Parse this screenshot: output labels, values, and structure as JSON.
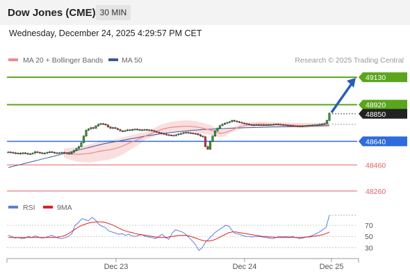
{
  "header": {
    "title": "Dow Jones (CME)",
    "timeframe": "30 MIN"
  },
  "datetime": "Wednesday, December 24, 2025 4:29:57 PM CET",
  "legend": {
    "ma20": "MA 20 + Bollinger Bands",
    "ma50": "MA 50",
    "copyright": "Research © 2025 Trading Central"
  },
  "rsi_legend": {
    "rsi": "RSI",
    "ma9": "9MA"
  },
  "colors": {
    "resistance": "#5aa51c",
    "support": "#2e6bdc",
    "target": "#e26060",
    "current": "#222222",
    "arrow": "#2a5fb0",
    "ma20": "#f08888",
    "ma50": "#3a5a98",
    "rsi": "#5b7fd6",
    "rsi_ma": "#e02020",
    "bull": "#2f9e2f",
    "bear": "#c43a3a"
  },
  "chart_data": {
    "type": "candlestick",
    "instrument": "Dow Jones (CME)",
    "timeframe": "30 MIN",
    "price_axis": {
      "ylim": [
        48180,
        49210
      ]
    },
    "x_tick_labels": [
      "Dec 23",
      "Dec 24",
      "Dec 25"
    ],
    "levels": [
      {
        "value": 49130,
        "label": "49130",
        "kind": "resistance"
      },
      {
        "value": 48920,
        "label": "48920",
        "kind": "resistance"
      },
      {
        "value": 48850,
        "label": "48850",
        "kind": "last"
      },
      {
        "value": 48640,
        "label": "48640",
        "kind": "support"
      },
      {
        "value": 48460,
        "label": "48460",
        "kind": "target"
      },
      {
        "value": 48260,
        "label": "48260",
        "kind": "target"
      }
    ],
    "closes": [
      48558,
      48556,
      48552,
      48548,
      48550,
      48545,
      48552,
      48548,
      48542,
      48545,
      48550,
      48560,
      48556,
      48552,
      48548,
      48550,
      48556,
      48560,
      48556,
      48552,
      48550,
      48552,
      48556,
      48552,
      48548,
      48544,
      48556,
      48570,
      48585,
      48600,
      48630,
      48680,
      48725,
      48735,
      48745,
      48740,
      48758,
      48770,
      48775,
      48772,
      48765,
      48750,
      48740,
      48745,
      48738,
      48730,
      48720,
      48718,
      48722,
      48728,
      48725,
      48730,
      48733,
      48730,
      48726,
      48728,
      48730,
      48728,
      48726,
      48722,
      48715,
      48710,
      48705,
      48700,
      48695,
      48690,
      48688,
      48686,
      48684,
      48690,
      48696,
      48700,
      48706,
      48708,
      48705,
      48703,
      48700,
      48698,
      48690,
      48680,
      48675,
      48600,
      48580,
      48640,
      48680,
      48720,
      48740,
      48760,
      48770,
      48778,
      48784,
      48790,
      48800,
      48795,
      48790,
      48785,
      48780,
      48776,
      48772,
      48768,
      48765,
      48765,
      48766,
      48765,
      48764,
      48766,
      48765,
      48766,
      48768,
      48770,
      48772,
      48770,
      48768,
      48766,
      48764,
      48762,
      48760,
      48758,
      48757,
      48756,
      48755,
      48757,
      48758,
      48760,
      48762,
      48764,
      48765,
      48766,
      48770,
      48772,
      48776,
      48800,
      48855
    ],
    "ma20_values": [
      48550,
      48548,
      48545,
      48543,
      48540,
      48541,
      48543,
      48545,
      48547,
      48550,
      48555,
      48560,
      48565,
      48568,
      48572,
      48575,
      48580,
      48585,
      48592,
      48600,
      48610,
      48620,
      48630,
      48640,
      48650,
      48660,
      48670,
      48680,
      48690,
      48700,
      48710,
      48720,
      48728,
      48735,
      48740,
      48745,
      48748,
      48750,
      48752,
      48754,
      48755,
      48755,
      48754,
      48752,
      48750,
      48745,
      48740,
      48735,
      48730,
      48722,
      48715,
      48708,
      48700,
      48705,
      48712,
      48720,
      48730,
      48740,
      48748,
      48755,
      48760,
      48765,
      48768,
      48770,
      48772,
      48772,
      48772,
      48771,
      48770,
      48768,
      48767,
      48766,
      48766,
      48765,
      48765,
      48764,
      48764,
      48763,
      48763,
      48762,
      48762,
      48762,
      48763,
      48763,
      48764,
      48764,
      48765,
      48767,
      48770
    ],
    "ma50_values": [
      48440,
      48450,
      48460,
      48470,
      48480,
      48490,
      48500,
      48510,
      48520,
      48530,
      48540,
      48550,
      48560,
      48570,
      48580,
      48590,
      48600,
      48610,
      48620,
      48628,
      48635,
      48642,
      48650,
      48658,
      48665,
      48672,
      48680,
      48686,
      48692,
      48698,
      48703,
      48708,
      48712,
      48716,
      48720,
      48724,
      48727,
      48730,
      48732,
      48734,
      48736,
      48738,
      48740,
      48742,
      48743,
      48744,
      48745,
      48746,
      48747,
      48748,
      48749,
      48750,
      48751,
      48752,
      48753,
      48754,
      48755,
      48756,
      48757,
      48758,
      48759,
      48760
    ],
    "rsi": {
      "ylim": [
        18,
        90
      ],
      "y_tick_labels": [
        "70",
        "50",
        "30"
      ],
      "levels": [
        70,
        50,
        30
      ],
      "rsi_values": [
        52,
        50,
        47,
        48,
        46,
        47,
        50,
        48,
        51,
        49,
        47,
        48,
        50,
        52,
        49,
        47,
        46,
        48,
        50,
        55,
        70,
        75,
        82,
        80,
        78,
        84,
        80,
        72,
        68,
        66,
        60,
        58,
        56,
        54,
        55,
        52,
        54,
        51,
        50,
        52,
        53,
        50,
        49,
        48,
        46,
        50,
        54,
        48,
        45,
        56,
        62,
        60,
        58,
        54,
        48,
        42,
        35,
        25,
        30,
        40,
        46,
        52,
        58,
        62,
        66,
        70,
        68,
        60,
        55,
        54,
        52,
        50,
        50,
        49,
        50,
        50,
        49,
        48,
        47,
        46,
        48,
        50,
        49,
        50,
        49,
        50,
        48,
        46,
        47,
        49,
        50,
        52,
        55,
        58,
        62,
        66,
        88
      ],
      "ma9_values": [
        48,
        48,
        48,
        48,
        48,
        48,
        48,
        48,
        48,
        48,
        48,
        48,
        48,
        48,
        48,
        49,
        50,
        52,
        55,
        59,
        63,
        67,
        70,
        72,
        74,
        75,
        76,
        76,
        76,
        75,
        73,
        71,
        68,
        65,
        62,
        60,
        58,
        57,
        55,
        54,
        53,
        52,
        51,
        50,
        49,
        48,
        48,
        48,
        49,
        50,
        51,
        52,
        52,
        52,
        51,
        49,
        47,
        45,
        43,
        42,
        42,
        43,
        45,
        48,
        51,
        54,
        57,
        58,
        58,
        57,
        56,
        55,
        54,
        53,
        52,
        51,
        50,
        50,
        49,
        49,
        48,
        48,
        48,
        48,
        48,
        48,
        48,
        48,
        48,
        49,
        49,
        50,
        51,
        52,
        53,
        55,
        58
      ]
    }
  }
}
